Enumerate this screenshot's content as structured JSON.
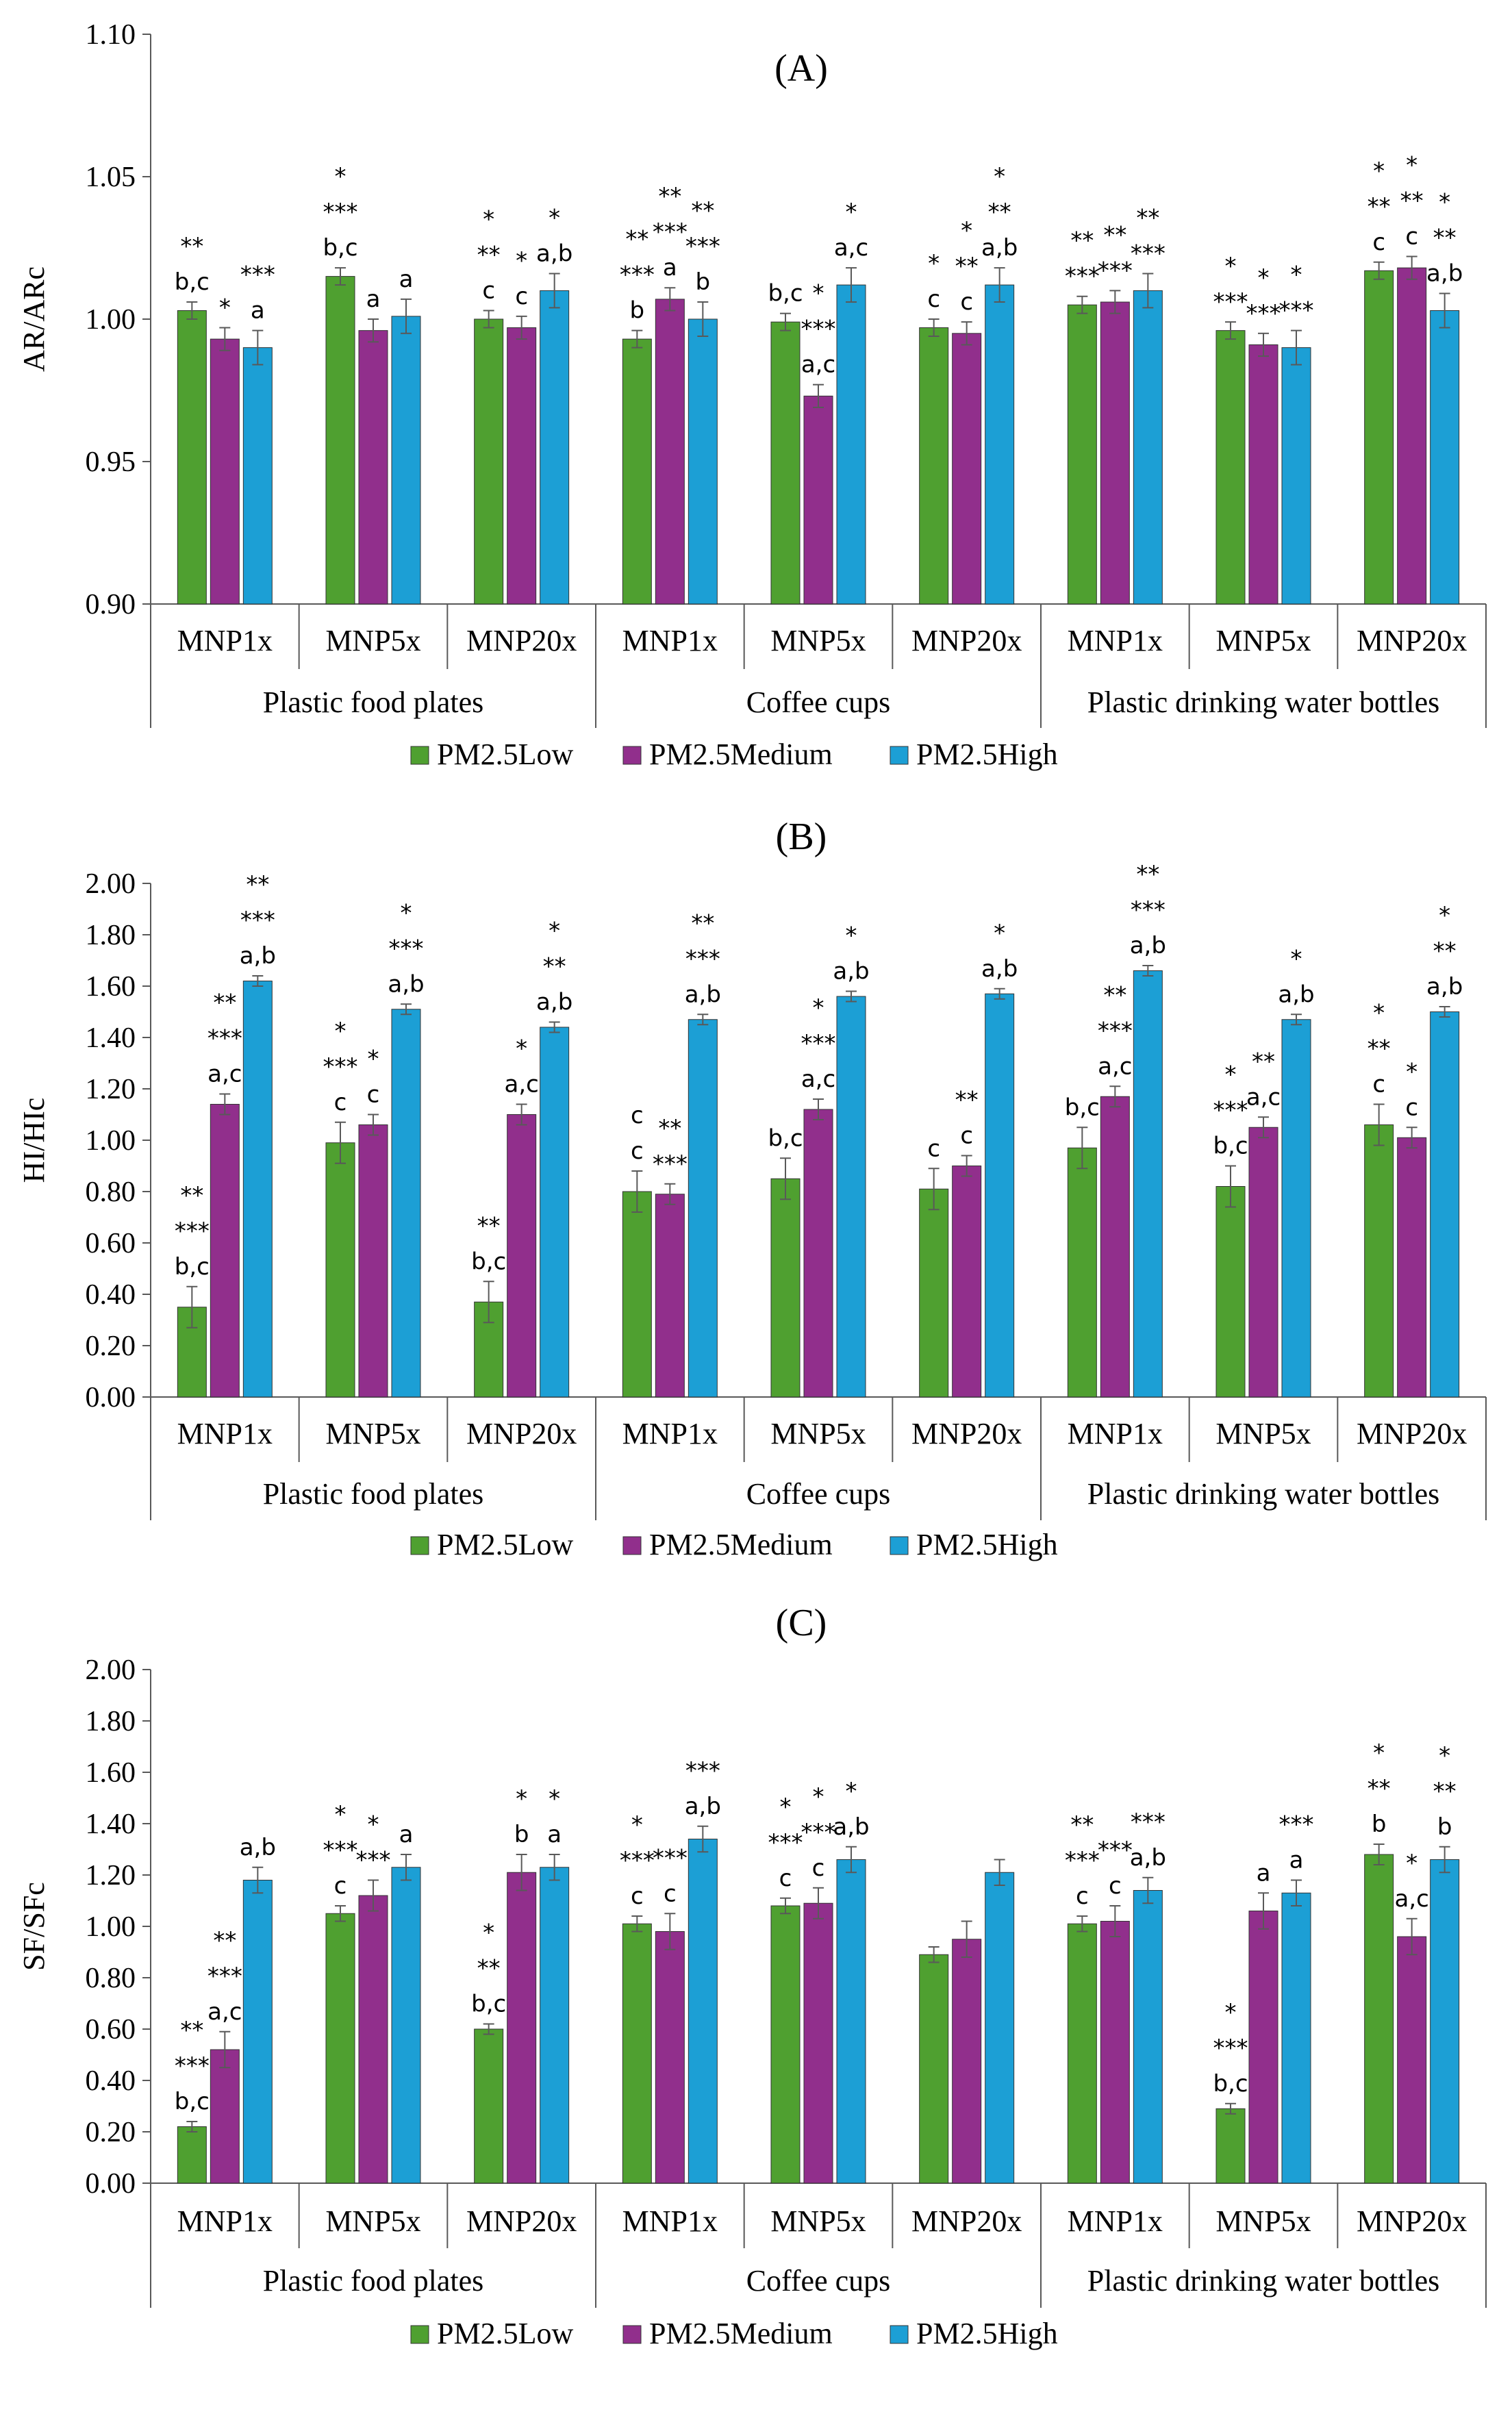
{
  "colors": {
    "low": "#4fa030",
    "medium": "#912f8c",
    "high": "#1c9fd5",
    "errorbar": "#595959"
  },
  "legend": [
    "PM2.5Low",
    "PM2.5Medium",
    "PM2.5High"
  ],
  "groups": [
    "Plastic food plates",
    "Coffee cups",
    "Plastic drinking water bottles"
  ],
  "chart_data": [
    {
      "type": "bar",
      "title": "(A)",
      "ylabel": "AR/ARc",
      "ylim": [
        0.9,
        1.1
      ],
      "yticks": [
        "0.90",
        "0.95",
        "1.00",
        "1.05",
        "1.10"
      ],
      "categories": [
        "MNP1x",
        "MNP5x",
        "MNP20x",
        "MNP1x",
        "MNP5x",
        "MNP20x",
        "MNP1x",
        "MNP5x",
        "MNP20x"
      ],
      "series": [
        {
          "name": "PM2.5Low",
          "values": [
            1.003,
            1.015,
            1.0,
            0.993,
            0.999,
            0.997,
            1.005,
            0.996,
            1.017
          ],
          "errors": [
            0.003,
            0.003,
            0.003,
            0.003,
            0.003,
            0.003,
            0.003,
            0.003,
            0.003
          ]
        },
        {
          "name": "PM2.5Medium",
          "values": [
            0.993,
            0.996,
            0.997,
            1.007,
            0.973,
            0.995,
            1.006,
            0.991,
            1.018
          ],
          "errors": [
            0.004,
            0.004,
            0.004,
            0.004,
            0.004,
            0.004,
            0.004,
            0.004,
            0.004
          ]
        },
        {
          "name": "PM2.5High",
          "values": [
            0.99,
            1.001,
            1.01,
            1.0,
            1.012,
            1.012,
            1.01,
            0.99,
            1.003
          ],
          "errors": [
            0.006,
            0.006,
            0.006,
            0.006,
            0.006,
            0.006,
            0.006,
            0.006,
            0.006
          ]
        }
      ],
      "annotations": [
        [
          "**\nb,c",
          "*",
          "***\na"
        ],
        [
          "*\n***\nb,c",
          "a",
          "a"
        ],
        [
          "*\n**\nc",
          "*\nc",
          "*\na,b"
        ],
        [
          "**\n***\nb",
          "**\n***\na",
          "**\n***\nb"
        ],
        [
          "b,c",
          "*\n***\na,c",
          "*\na,c"
        ],
        [
          "*\nc",
          "*\n**\nc",
          "*\n**\na,b"
        ],
        [
          "**\n***",
          "**\n***",
          "**\n***"
        ],
        [
          "*\n***",
          "*\n***",
          "*\n***"
        ],
        [
          "*\n**\nc",
          "*\n**\nc",
          "*\n**\na,b"
        ]
      ]
    },
    {
      "type": "bar",
      "title": "(B)",
      "ylabel": "HI/HIc",
      "ylim": [
        0.0,
        2.0
      ],
      "yticks": [
        "0.00",
        "0.20",
        "0.40",
        "0.60",
        "0.80",
        "1.00",
        "1.20",
        "1.40",
        "1.60",
        "1.80",
        "2.00"
      ],
      "categories": [
        "MNP1x",
        "MNP5x",
        "MNP20x",
        "MNP1x",
        "MNP5x",
        "MNP20x",
        "MNP1x",
        "MNP5x",
        "MNP20x"
      ],
      "series": [
        {
          "name": "PM2.5Low",
          "values": [
            0.35,
            0.99,
            0.37,
            0.8,
            0.85,
            0.81,
            0.97,
            0.82,
            1.06
          ],
          "errors": [
            0.08,
            0.08,
            0.08,
            0.08,
            0.08,
            0.08,
            0.08,
            0.08,
            0.08
          ]
        },
        {
          "name": "PM2.5Medium",
          "values": [
            1.14,
            1.06,
            1.1,
            0.79,
            1.12,
            0.9,
            1.17,
            1.05,
            1.01
          ],
          "errors": [
            0.04,
            0.04,
            0.04,
            0.04,
            0.04,
            0.04,
            0.04,
            0.04,
            0.04
          ]
        },
        {
          "name": "PM2.5High",
          "values": [
            1.62,
            1.51,
            1.44,
            1.47,
            1.56,
            1.57,
            1.66,
            1.47,
            1.5
          ],
          "errors": [
            0.02,
            0.02,
            0.02,
            0.02,
            0.02,
            0.02,
            0.02,
            0.02,
            0.02
          ]
        }
      ],
      "annotations": [
        [
          "**\n***\nb,c",
          "**\n***\na,c",
          "**\n***\na,b"
        ],
        [
          "*\n***\nc",
          "*\nc",
          "*\n***\na,b"
        ],
        [
          "**\nb,c",
          "*\na,c",
          "*\n**\na,b"
        ],
        [
          "c\nc",
          "**\n***",
          "**\n***\na,b"
        ],
        [
          "b,c",
          "*\n***\na,c",
          "*\na,b"
        ],
        [
          "c",
          "**\nc",
          "*\na,b"
        ],
        [
          "b,c",
          "**\n***\na,c",
          "**\n***\na,b"
        ],
        [
          "*\n***\nb,c",
          "**\na,c",
          "*\na,b"
        ],
        [
          "*\n**\nc",
          "*\nc",
          "*\n**\na,b"
        ]
      ]
    },
    {
      "type": "bar",
      "title": "(C)",
      "ylabel": "SF/SFc",
      "ylim": [
        0.0,
        2.0
      ],
      "yticks": [
        "0.00",
        "0.20",
        "0.40",
        "0.60",
        "0.80",
        "1.00",
        "1.20",
        "1.40",
        "1.60",
        "1.80",
        "2.00"
      ],
      "categories": [
        "MNP1x",
        "MNP5x",
        "MNP20x",
        "MNP1x",
        "MNP5x",
        "MNP20x",
        "MNP1x",
        "MNP5x",
        "MNP20x"
      ],
      "series": [
        {
          "name": "PM2.5Low",
          "values": [
            0.22,
            1.05,
            0.6,
            1.01,
            1.08,
            0.89,
            1.01,
            0.29,
            1.28
          ],
          "errors": [
            0.02,
            0.03,
            0.02,
            0.03,
            0.03,
            0.03,
            0.03,
            0.02,
            0.04
          ]
        },
        {
          "name": "PM2.5Medium",
          "values": [
            0.52,
            1.12,
            1.21,
            0.98,
            1.09,
            0.95,
            1.02,
            1.06,
            0.96
          ],
          "errors": [
            0.07,
            0.06,
            0.07,
            0.07,
            0.06,
            0.07,
            0.06,
            0.07,
            0.07
          ]
        },
        {
          "name": "PM2.5High",
          "values": [
            1.18,
            1.23,
            1.23,
            1.34,
            1.26,
            1.21,
            1.14,
            1.13,
            1.26
          ],
          "errors": [
            0.05,
            0.05,
            0.05,
            0.05,
            0.05,
            0.05,
            0.05,
            0.05,
            0.05
          ]
        }
      ],
      "annotations": [
        [
          "**\n***\nb,c",
          "**\n***\na,c",
          "a,b"
        ],
        [
          "*\n***\nc",
          "*\n***",
          "a"
        ],
        [
          "*\n**\nb,c",
          "*\nb",
          "*\na"
        ],
        [
          "*\n***\nc",
          "***\nc",
          "***\na,b"
        ],
        [
          "*\n***\nc",
          "*\n***\nc",
          "*\na,b"
        ],
        [
          "",
          "",
          ""
        ],
        [
          "**\n***\nc",
          "***\nc",
          "***\na,b"
        ],
        [
          "*\n***\nb,c",
          "a",
          "***\na"
        ],
        [
          "*\n**\nb",
          "*\na,c",
          "*\n**\nb"
        ]
      ]
    }
  ]
}
